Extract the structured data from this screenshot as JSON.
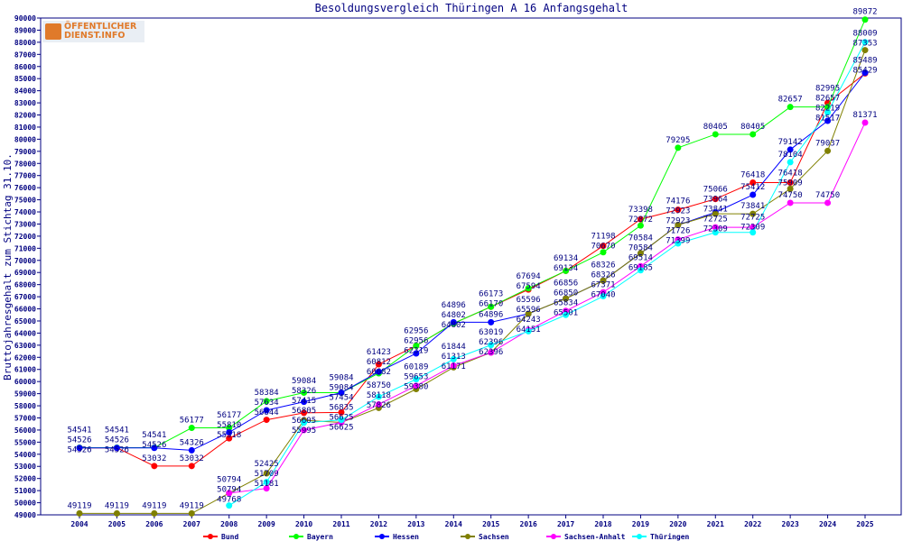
{
  "logo": {
    "line1": "ÖFFENTLICHER",
    "line2": "DIENST.INFO"
  },
  "chart_data": {
    "type": "line",
    "title": "Besoldungsvergleich Thüringen A 16 Anfangsgehalt",
    "xlabel": "",
    "ylabel": "Bruttojahresgehalt zum Stichtag 31.10.",
    "ylim": [
      49000,
      90000
    ],
    "ytick_step": 1000,
    "grid": false,
    "legend": "bottom",
    "categories": [
      "2004",
      "2005",
      "2006",
      "2007",
      "2008",
      "2009",
      "2010",
      "2011",
      "2012",
      "2013",
      "2014",
      "2015",
      "2016",
      "2017",
      "2018",
      "2019",
      "2020",
      "2021",
      "2022",
      "2023",
      "2024",
      "2025"
    ],
    "series": [
      {
        "name": "Bund",
        "color": "#ff0000",
        "values": [
          54526,
          54526,
          53032,
          53032,
          55318,
          56844,
          57415,
          57454,
          61423,
          62956,
          64802,
          66170,
          67594,
          69134,
          71198,
          73398,
          74176,
          75066,
          76418,
          76418,
          82995,
          85429
        ]
      },
      {
        "name": "Bayern",
        "color": "#00ff00",
        "values": [
          54541,
          54541,
          54541,
          56177,
          56177,
          58384,
          59084,
          59084,
          60682,
          62956,
          64802,
          66173,
          67694,
          69134,
          70670,
          72872,
          79295,
          80405,
          80405,
          82657,
          82657,
          89872
        ]
      },
      {
        "name": "Hessen",
        "color": "#0000ff",
        "values": [
          54526,
          54526,
          54526,
          54326,
          55810,
          57634,
          58326,
          59084,
          60812,
          62319,
          64896,
          64896,
          65596,
          66856,
          68326,
          70584,
          72923,
          73964,
          75412,
          79142,
          81517,
          85489
        ]
      },
      {
        "name": "Sachsen",
        "color": "#808000",
        "values": [
          49119,
          49119,
          49119,
          49119,
          50794,
          52425,
          56805,
          56625,
          57826,
          59380,
          61171,
          62396,
          65596,
          66850,
          68326,
          70584,
          72923,
          73841,
          73841,
          75909,
          79037,
          87353
        ]
      },
      {
        "name": "Sachsen-Anhalt",
        "color": "#ff00ff",
        "values": [
          null,
          null,
          null,
          null,
          50794,
          51181,
          55995,
          56625,
          58118,
          59653,
          61313,
          62396,
          64243,
          65834,
          67371,
          69514,
          71726,
          72725,
          72725,
          74750,
          74750,
          81371
        ]
      },
      {
        "name": "Thüringen",
        "color": "#00ffff",
        "values": [
          null,
          null,
          null,
          null,
          49768,
          51709,
          56605,
          56835,
          58750,
          60189,
          61844,
          63019,
          64151,
          65501,
          67040,
          69185,
          71399,
          72309,
          72309,
          78104,
          82219,
          88009
        ]
      }
    ]
  }
}
